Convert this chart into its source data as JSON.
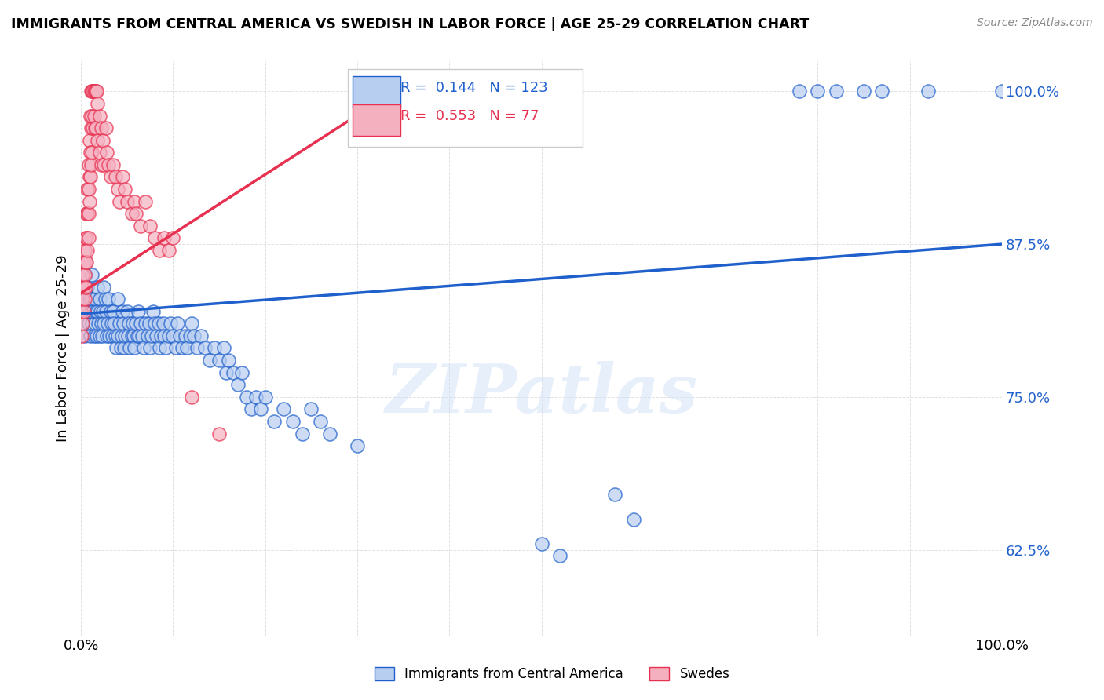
{
  "title": "IMMIGRANTS FROM CENTRAL AMERICA VS SWEDISH IN LABOR FORCE | AGE 25-29 CORRELATION CHART",
  "source": "Source: ZipAtlas.com",
  "ylabel": "In Labor Force | Age 25-29",
  "xlim": [
    0.0,
    1.0
  ],
  "ylim": [
    0.555,
    1.025
  ],
  "x_ticks": [
    0.0,
    0.1,
    0.2,
    0.3,
    0.4,
    0.5,
    0.6,
    0.7,
    0.8,
    0.9,
    1.0
  ],
  "x_tick_labels": [
    "0.0%",
    "",
    "",
    "",
    "",
    "",
    "",
    "",
    "",
    "",
    "100.0%"
  ],
  "y_ticks": [
    0.625,
    0.75,
    0.875,
    1.0
  ],
  "y_tick_labels": [
    "62.5%",
    "75.0%",
    "87.5%",
    "100.0%"
  ],
  "blue_R": 0.144,
  "blue_N": 123,
  "pink_R": 0.553,
  "pink_N": 77,
  "blue_color": "#b8cef0",
  "pink_color": "#f5b0c0",
  "blue_line_color": "#2060cc",
  "pink_line_color": "#e83050",
  "legend_blue_label": "Immigrants from Central America",
  "legend_pink_label": "Swedes",
  "watermark": "ZIPatlas",
  "blue_points": [
    [
      0.002,
      0.84
    ],
    [
      0.003,
      0.82
    ],
    [
      0.004,
      0.8
    ],
    [
      0.005,
      0.85
    ],
    [
      0.005,
      0.83
    ],
    [
      0.006,
      0.82
    ],
    [
      0.007,
      0.84
    ],
    [
      0.008,
      0.81
    ],
    [
      0.009,
      0.83
    ],
    [
      0.01,
      0.82
    ],
    [
      0.01,
      0.8
    ],
    [
      0.011,
      0.83
    ],
    [
      0.012,
      0.81
    ],
    [
      0.012,
      0.85
    ],
    [
      0.013,
      0.82
    ],
    [
      0.014,
      0.8
    ],
    [
      0.015,
      0.83
    ],
    [
      0.015,
      0.81
    ],
    [
      0.016,
      0.82
    ],
    [
      0.017,
      0.8
    ],
    [
      0.018,
      0.84
    ],
    [
      0.018,
      0.82
    ],
    [
      0.019,
      0.81
    ],
    [
      0.02,
      0.83
    ],
    [
      0.02,
      0.8
    ],
    [
      0.021,
      0.82
    ],
    [
      0.022,
      0.81
    ],
    [
      0.023,
      0.8
    ],
    [
      0.024,
      0.82
    ],
    [
      0.025,
      0.84
    ],
    [
      0.025,
      0.81
    ],
    [
      0.026,
      0.83
    ],
    [
      0.027,
      0.82
    ],
    [
      0.028,
      0.8
    ],
    [
      0.029,
      0.81
    ],
    [
      0.03,
      0.83
    ],
    [
      0.031,
      0.8
    ],
    [
      0.032,
      0.82
    ],
    [
      0.033,
      0.81
    ],
    [
      0.034,
      0.8
    ],
    [
      0.035,
      0.82
    ],
    [
      0.036,
      0.81
    ],
    [
      0.037,
      0.8
    ],
    [
      0.038,
      0.79
    ],
    [
      0.04,
      0.83
    ],
    [
      0.04,
      0.8
    ],
    [
      0.042,
      0.81
    ],
    [
      0.043,
      0.79
    ],
    [
      0.044,
      0.8
    ],
    [
      0.045,
      0.82
    ],
    [
      0.046,
      0.81
    ],
    [
      0.047,
      0.79
    ],
    [
      0.048,
      0.8
    ],
    [
      0.05,
      0.82
    ],
    [
      0.051,
      0.8
    ],
    [
      0.052,
      0.81
    ],
    [
      0.053,
      0.79
    ],
    [
      0.055,
      0.8
    ],
    [
      0.056,
      0.81
    ],
    [
      0.057,
      0.8
    ],
    [
      0.058,
      0.79
    ],
    [
      0.06,
      0.81
    ],
    [
      0.061,
      0.8
    ],
    [
      0.062,
      0.82
    ],
    [
      0.063,
      0.8
    ],
    [
      0.065,
      0.81
    ],
    [
      0.066,
      0.8
    ],
    [
      0.068,
      0.79
    ],
    [
      0.07,
      0.81
    ],
    [
      0.072,
      0.8
    ],
    [
      0.074,
      0.81
    ],
    [
      0.075,
      0.79
    ],
    [
      0.077,
      0.8
    ],
    [
      0.078,
      0.82
    ],
    [
      0.08,
      0.81
    ],
    [
      0.082,
      0.8
    ],
    [
      0.084,
      0.81
    ],
    [
      0.085,
      0.79
    ],
    [
      0.087,
      0.8
    ],
    [
      0.089,
      0.81
    ],
    [
      0.09,
      0.8
    ],
    [
      0.092,
      0.79
    ],
    [
      0.095,
      0.8
    ],
    [
      0.097,
      0.81
    ],
    [
      0.1,
      0.8
    ],
    [
      0.103,
      0.79
    ],
    [
      0.105,
      0.81
    ],
    [
      0.107,
      0.8
    ],
    [
      0.11,
      0.79
    ],
    [
      0.113,
      0.8
    ],
    [
      0.115,
      0.79
    ],
    [
      0.118,
      0.8
    ],
    [
      0.12,
      0.81
    ],
    [
      0.123,
      0.8
    ],
    [
      0.126,
      0.79
    ],
    [
      0.13,
      0.8
    ],
    [
      0.135,
      0.79
    ],
    [
      0.14,
      0.78
    ],
    [
      0.145,
      0.79
    ],
    [
      0.15,
      0.78
    ],
    [
      0.155,
      0.79
    ],
    [
      0.158,
      0.77
    ],
    [
      0.16,
      0.78
    ],
    [
      0.165,
      0.77
    ],
    [
      0.17,
      0.76
    ],
    [
      0.175,
      0.77
    ],
    [
      0.18,
      0.75
    ],
    [
      0.185,
      0.74
    ],
    [
      0.19,
      0.75
    ],
    [
      0.195,
      0.74
    ],
    [
      0.2,
      0.75
    ],
    [
      0.21,
      0.73
    ],
    [
      0.22,
      0.74
    ],
    [
      0.23,
      0.73
    ],
    [
      0.24,
      0.72
    ],
    [
      0.25,
      0.74
    ],
    [
      0.26,
      0.73
    ],
    [
      0.27,
      0.72
    ],
    [
      0.3,
      0.71
    ],
    [
      0.5,
      0.63
    ],
    [
      0.52,
      0.62
    ],
    [
      0.58,
      0.67
    ],
    [
      0.6,
      0.65
    ],
    [
      0.78,
      1.0
    ],
    [
      0.8,
      1.0
    ],
    [
      0.82,
      1.0
    ],
    [
      0.85,
      1.0
    ],
    [
      0.87,
      1.0
    ],
    [
      0.92,
      1.0
    ],
    [
      1.0,
      1.0
    ]
  ],
  "pink_points": [
    [
      0.0,
      0.82
    ],
    [
      0.001,
      0.84
    ],
    [
      0.001,
      0.8
    ],
    [
      0.002,
      0.85
    ],
    [
      0.002,
      0.83
    ],
    [
      0.002,
      0.81
    ],
    [
      0.003,
      0.86
    ],
    [
      0.003,
      0.84
    ],
    [
      0.003,
      0.82
    ],
    [
      0.004,
      0.87
    ],
    [
      0.004,
      0.85
    ],
    [
      0.004,
      0.83
    ],
    [
      0.005,
      0.88
    ],
    [
      0.005,
      0.86
    ],
    [
      0.005,
      0.84
    ],
    [
      0.006,
      0.9
    ],
    [
      0.006,
      0.88
    ],
    [
      0.006,
      0.86
    ],
    [
      0.007,
      0.92
    ],
    [
      0.007,
      0.9
    ],
    [
      0.007,
      0.87
    ],
    [
      0.008,
      0.94
    ],
    [
      0.008,
      0.92
    ],
    [
      0.008,
      0.9
    ],
    [
      0.008,
      0.88
    ],
    [
      0.009,
      0.96
    ],
    [
      0.009,
      0.93
    ],
    [
      0.009,
      0.91
    ],
    [
      0.01,
      0.98
    ],
    [
      0.01,
      0.95
    ],
    [
      0.01,
      0.93
    ],
    [
      0.011,
      1.0
    ],
    [
      0.011,
      0.97
    ],
    [
      0.011,
      0.94
    ],
    [
      0.012,
      1.0
    ],
    [
      0.012,
      0.98
    ],
    [
      0.012,
      0.95
    ],
    [
      0.013,
      1.0
    ],
    [
      0.013,
      0.97
    ],
    [
      0.014,
      1.0
    ],
    [
      0.014,
      0.98
    ],
    [
      0.015,
      1.0
    ],
    [
      0.015,
      0.97
    ],
    [
      0.016,
      1.0
    ],
    [
      0.016,
      0.97
    ],
    [
      0.017,
      1.0
    ],
    [
      0.018,
      0.99
    ],
    [
      0.018,
      0.96
    ],
    [
      0.02,
      0.98
    ],
    [
      0.02,
      0.95
    ],
    [
      0.022,
      0.97
    ],
    [
      0.022,
      0.94
    ],
    [
      0.024,
      0.96
    ],
    [
      0.025,
      0.94
    ],
    [
      0.027,
      0.97
    ],
    [
      0.028,
      0.95
    ],
    [
      0.03,
      0.94
    ],
    [
      0.032,
      0.93
    ],
    [
      0.035,
      0.94
    ],
    [
      0.037,
      0.93
    ],
    [
      0.04,
      0.92
    ],
    [
      0.042,
      0.91
    ],
    [
      0.045,
      0.93
    ],
    [
      0.048,
      0.92
    ],
    [
      0.05,
      0.91
    ],
    [
      0.055,
      0.9
    ],
    [
      0.058,
      0.91
    ],
    [
      0.06,
      0.9
    ],
    [
      0.065,
      0.89
    ],
    [
      0.07,
      0.91
    ],
    [
      0.075,
      0.89
    ],
    [
      0.08,
      0.88
    ],
    [
      0.085,
      0.87
    ],
    [
      0.09,
      0.88
    ],
    [
      0.095,
      0.87
    ],
    [
      0.1,
      0.88
    ],
    [
      0.12,
      0.75
    ],
    [
      0.15,
      0.72
    ]
  ]
}
